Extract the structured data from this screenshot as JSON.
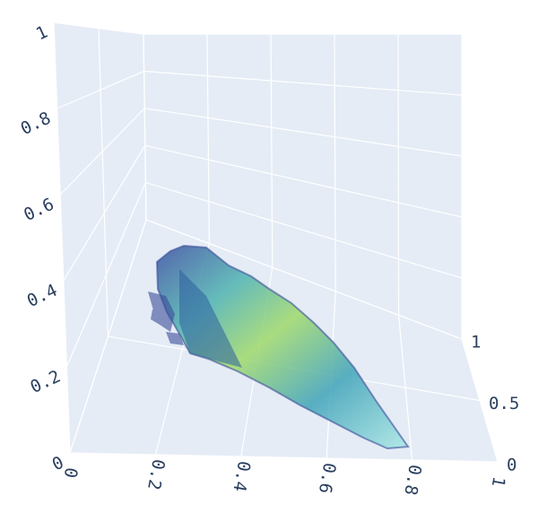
{
  "chart_data": {
    "type": "isosurface",
    "xlim": [
      0,
      1
    ],
    "xticks": [
      0,
      0.2,
      0.4,
      0.6,
      0.8,
      1
    ],
    "ylim": [
      0,
      1
    ],
    "yticks": [
      0,
      0.5,
      1
    ],
    "zlim": [
      0,
      1
    ],
    "zticks": [
      0,
      0.2,
      0.4,
      0.6,
      0.8,
      1
    ],
    "grid": true,
    "wall_color": "#e5ecf6"
  }
}
